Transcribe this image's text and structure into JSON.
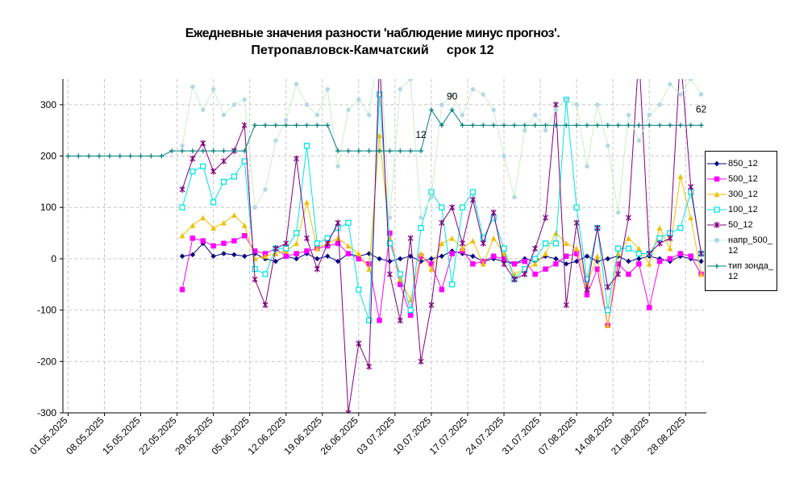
{
  "chart_data": {
    "type": "line",
    "title": "Ежедневные значения разности 'наблюдение минус прогноз'.",
    "subtitle": "Петропавловск-Камчатский     срок 12",
    "x": [
      "01.05.2025",
      "03.05.2025",
      "05.05.2025",
      "07.05.2025",
      "09.05.2025",
      "11.05.2025",
      "13.05.2025",
      "15.05.2025",
      "17.05.2025",
      "19.05.2025",
      "21.05.2025",
      "23.05.2025",
      "25.05.2025",
      "27.05.2025",
      "29.05.2025",
      "31.05.2025",
      "02.06.2025",
      "04.06.2025",
      "06.06.2025",
      "08.06.2025",
      "10.06.2025",
      "12.06.2025",
      "14.06.2025",
      "16.06.2025",
      "18.06.2025",
      "20.06.2025",
      "22.06.2025",
      "24.06.2025",
      "26.06.2025",
      "28.06.2025",
      "30.06.2025",
      "02.07.2025",
      "04.07.2025",
      "06.07.2025",
      "08.07.2025",
      "10.07.2025",
      "12.07.2025",
      "14.07.2025",
      "16.07.2025",
      "18.07.2025",
      "20.07.2025",
      "22.07.2025",
      "24.07.2025",
      "26.07.2025",
      "28.07.2025",
      "30.07.2025",
      "01.08.2025",
      "03.08.2025",
      "05.08.2025",
      "07.08.2025",
      "09.08.2025",
      "11.08.2025",
      "13.08.2025",
      "15.08.2025",
      "17.08.2025",
      "19.08.2025",
      "21.08.2025",
      "23.08.2025",
      "25.08.2025",
      "27.08.2025",
      "29.08.2025",
      "31.08.2025"
    ],
    "xlim": [
      "30.04.2025",
      "01.09.2025"
    ],
    "xticks": [
      "01.05.2025",
      "08.05.2025",
      "15.05.2025",
      "22.05.2025",
      "29.05.2025",
      "05.06.2025",
      "12.06.2025",
      "19.06.2025",
      "26.06.2025",
      {
        "value": "03.07.2025",
        "label": "03 07.2025"
      },
      "10.07.2025",
      "17.07.2025",
      "24.07.2025",
      "31.07.2025",
      "07.08.2025",
      "14.08.2025",
      "21.08.2025",
      "28.08.2025"
    ],
    "ylim": [
      -300,
      350
    ],
    "yticks": [
      -300,
      -200,
      -100,
      0,
      100,
      200,
      300
    ],
    "grid": true,
    "legend": "right",
    "series": [
      {
        "name": "850_12",
        "color": "#000080",
        "marker": "diamond",
        "values": [
          null,
          null,
          null,
          null,
          null,
          null,
          null,
          null,
          null,
          null,
          null,
          5,
          8,
          30,
          5,
          10,
          8,
          5,
          10,
          0,
          -5,
          5,
          0,
          10,
          0,
          5,
          -5,
          10,
          5,
          10,
          0,
          -5,
          0,
          5,
          -5,
          0,
          5,
          15,
          10,
          5,
          -5,
          0,
          -5,
          -10,
          0,
          -5,
          5,
          0,
          -10,
          -5,
          5,
          -5,
          0,
          5,
          -5,
          0,
          5,
          0,
          -5,
          5,
          0,
          -5
        ]
      },
      {
        "name": "500_12",
        "color": "#ff00ff",
        "marker": "square",
        "values": [
          null,
          null,
          null,
          null,
          null,
          null,
          null,
          null,
          null,
          null,
          null,
          -60,
          40,
          35,
          25,
          30,
          35,
          45,
          15,
          10,
          20,
          5,
          10,
          15,
          20,
          25,
          30,
          10,
          0,
          -10,
          -120,
          50,
          -50,
          -110,
          5,
          -10,
          -60,
          10,
          15,
          -10,
          -5,
          5,
          0,
          -10,
          -5,
          -30,
          -20,
          -10,
          5,
          10,
          -70,
          -20,
          -130,
          -10,
          -30,
          -10,
          -95,
          -5,
          0,
          10,
          5,
          -30
        ]
      },
      {
        "name": "300_12",
        "color": "#f0c000",
        "marker": "triangle",
        "values": [
          null,
          null,
          null,
          null,
          null,
          null,
          null,
          null,
          null,
          null,
          null,
          45,
          65,
          80,
          60,
          70,
          85,
          65,
          0,
          5,
          10,
          15,
          30,
          110,
          20,
          30,
          40,
          25,
          10,
          -20,
          240,
          40,
          -40,
          -80,
          10,
          -20,
          30,
          40,
          20,
          35,
          -10,
          40,
          10,
          -30,
          -20,
          -10,
          10,
          50,
          30,
          20,
          -50,
          5,
          -130,
          10,
          40,
          20,
          -10,
          60,
          20,
          160,
          80,
          -30
        ]
      },
      {
        "name": "100_12",
        "color": "#00e5e5",
        "marker": "square-open",
        "values": [
          null,
          null,
          null,
          null,
          null,
          null,
          null,
          null,
          null,
          null,
          null,
          100,
          170,
          180,
          110,
          150,
          160,
          190,
          -20,
          -30,
          20,
          20,
          50,
          220,
          30,
          40,
          60,
          70,
          -60,
          -120,
          320,
          30,
          -30,
          -100,
          60,
          130,
          100,
          -50,
          100,
          130,
          40,
          80,
          20,
          -40,
          -20,
          0,
          30,
          30,
          310,
          100,
          -40,
          60,
          -100,
          20,
          20,
          10,
          10,
          40,
          50,
          60,
          130,
          10
        ]
      },
      {
        "name": "50_12",
        "color": "#800080",
        "marker": "star",
        "values": [
          null,
          null,
          null,
          null,
          null,
          null,
          null,
          null,
          null,
          null,
          null,
          135,
          195,
          225,
          170,
          190,
          210,
          260,
          -40,
          -90,
          20,
          30,
          195,
          40,
          -20,
          30,
          70,
          -300,
          -165,
          -210,
          390,
          -30,
          -120,
          40,
          -200,
          -90,
          70,
          100,
          30,
          115,
          30,
          90,
          -10,
          -40,
          -30,
          20,
          80,
          300,
          -90,
          70,
          -60,
          60,
          -55,
          -30,
          80,
          400,
          10,
          30,
          40,
          400,
          140,
          10
        ]
      },
      {
        "name": "напр_500_12",
        "color": "#b4d8e6",
        "line_color": "#c8f0c8",
        "marker": "circle",
        "values": [
          null,
          null,
          null,
          null,
          null,
          null,
          null,
          null,
          null,
          null,
          null,
          220,
          335,
          290,
          330,
          280,
          300,
          310,
          100,
          135,
          230,
          270,
          340,
          300,
          280,
          330,
          180,
          290,
          310,
          280,
          430,
          80,
          330,
          350,
          80,
          120,
          300,
          320,
          280,
          330,
          320,
          290,
          200,
          120,
          250,
          280,
          250,
          290,
          310,
          300,
          180,
          300,
          220,
          90,
          280,
          230,
          280,
          300,
          340,
          320,
          350,
          320
        ]
      },
      {
        "name": "тип зонда_12",
        "color": "#008080",
        "marker": "plus",
        "values": [
          200,
          200,
          200,
          200,
          200,
          200,
          200,
          200,
          200,
          200,
          210,
          210,
          210,
          210,
          210,
          210,
          210,
          210,
          260,
          260,
          260,
          260,
          260,
          260,
          260,
          260,
          210,
          210,
          210,
          210,
          210,
          210,
          210,
          210,
          210,
          290,
          260,
          290,
          260,
          260,
          260,
          260,
          260,
          260,
          260,
          260,
          260,
          260,
          260,
          260,
          260,
          260,
          260,
          260,
          260,
          260,
          260,
          260,
          260,
          260,
          260,
          260
        ]
      }
    ],
    "annotations": [
      {
        "text": "12",
        "x": "08.07.2025",
        "y": 235
      },
      {
        "text": "90",
        "x": "14.07.2025",
        "y": 310
      },
      {
        "text": "62",
        "x": "31.08.2025",
        "y": 285
      }
    ]
  }
}
